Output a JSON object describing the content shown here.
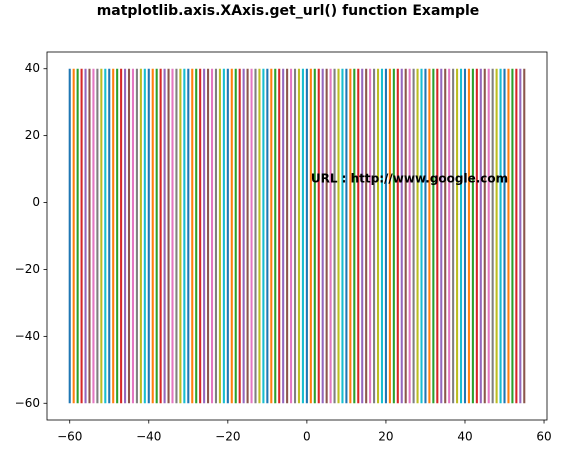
{
  "chart_data": {
    "type": "vlines",
    "title": "matplotlib.axis.XAxis.get_url() function Example",
    "x": [
      -60,
      -59,
      -58,
      -57,
      -56,
      -55,
      -54,
      -53,
      -52,
      -51,
      -50,
      -49,
      -48,
      -47,
      -46,
      -45,
      -44,
      -43,
      -42,
      -41,
      -40,
      -39,
      -38,
      -37,
      -36,
      -35,
      -34,
      -33,
      -32,
      -31,
      -30,
      -29,
      -28,
      -27,
      -26,
      -25,
      -24,
      -23,
      -22,
      -21,
      -20,
      -19,
      -18,
      -17,
      -16,
      -15,
      -14,
      -13,
      -12,
      -11,
      -10,
      -9,
      -8,
      -7,
      -6,
      -5,
      -4,
      -3,
      -2,
      -1,
      0,
      1,
      2,
      3,
      4,
      5,
      6,
      7,
      8,
      9,
      10,
      11,
      12,
      13,
      14,
      15,
      16,
      17,
      18,
      19,
      20,
      21,
      22,
      23,
      24,
      25,
      26,
      27,
      28,
      29,
      30,
      31,
      32,
      33,
      34,
      35,
      36,
      37,
      38,
      39,
      40,
      41,
      42,
      43,
      44,
      45,
      46,
      47,
      48,
      49,
      50,
      51,
      52,
      53,
      54,
      55
    ],
    "ymin": -60,
    "ymax": 40,
    "colors": [
      "#1f77b4",
      "#ff7f0e",
      "#2ca02c",
      "#d62728",
      "#9467bd",
      "#8c564b",
      "#e377c2",
      "#7f7f7f",
      "#bcbd22",
      "#17becf"
    ],
    "xlim": [
      -65.75,
      60.75
    ],
    "ylim": [
      -65,
      45
    ],
    "xticks": [
      {
        "value": -60,
        "label": "−60"
      },
      {
        "value": -40,
        "label": "−40"
      },
      {
        "value": -20,
        "label": "−20"
      },
      0,
      20,
      40,
      60
    ],
    "yticks": [
      {
        "value": -60,
        "label": "−60"
      },
      {
        "value": -40,
        "label": "−40"
      },
      {
        "value": -20,
        "label": "−20"
      },
      0,
      20,
      40
    ],
    "annotation": {
      "text": "URL : http://www.google.com",
      "x": 1,
      "y": 7
    }
  }
}
